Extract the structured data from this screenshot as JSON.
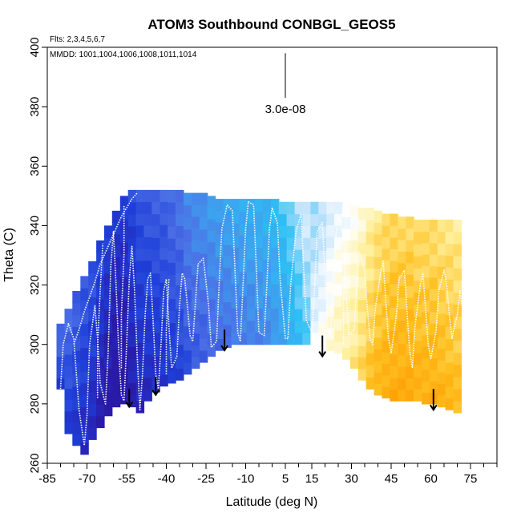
{
  "chart_data": {
    "type": "heatmap",
    "title": "ATOM3 Southbound CONBGL_GEOS5",
    "flights_note": "Flts: 2,3,4,5,6,7",
    "dates_note": "MMDD: 1001,1004,1006,1008,1011,1014",
    "xlabel": "Latitude (deg N)",
    "ylabel": "Theta (C)",
    "xlim": [
      -85,
      85
    ],
    "ylim": [
      260,
      400
    ],
    "x_ticks": [
      -85,
      -70,
      -55,
      -40,
      -25,
      -10,
      5,
      15,
      30,
      45,
      60,
      75
    ],
    "y_ticks": [
      260,
      280,
      300,
      320,
      340,
      360,
      380,
      400
    ],
    "scale_label": "3.0e-08",
    "scale_bar_x": 5,
    "scale_bar_y": [
      383,
      398
    ],
    "colormap": [
      "#2a1aa8",
      "#1e3fd8",
      "#4b6ee6",
      "#3ea0ee",
      "#2cc0f4",
      "#bfe2fb",
      "#ffffff",
      "#ffef9a",
      "#ffc020",
      "#ff9a00",
      "#e03000"
    ],
    "field": [
      {
        "lat": -80,
        "tmin": 285,
        "tmax": 307,
        "v": 0.15
      },
      {
        "lat": -77,
        "tmin": 270,
        "tmax": 312,
        "v": 0.14
      },
      {
        "lat": -74,
        "tmin": 266,
        "tmax": 318,
        "v": 0.12
      },
      {
        "lat": -71,
        "tmin": 263,
        "tmax": 323,
        "v": 0.1
      },
      {
        "lat": -68,
        "tmin": 268,
        "tmax": 328,
        "v": 0.09
      },
      {
        "lat": -65,
        "tmin": 272,
        "tmax": 335,
        "v": 0.06
      },
      {
        "lat": -62,
        "tmin": 276,
        "tmax": 340,
        "v": 0.04
      },
      {
        "lat": -59,
        "tmin": 279,
        "tmax": 345,
        "v": 0.02
      },
      {
        "lat": -56,
        "tmin": 280,
        "tmax": 350,
        "v": 0.03
      },
      {
        "lat": -53,
        "tmin": 279,
        "tmax": 352,
        "v": 0.06
      },
      {
        "lat": -50,
        "tmin": 277,
        "tmax": 352,
        "v": 0.09
      },
      {
        "lat": -47,
        "tmin": 281,
        "tmax": 352,
        "v": 0.1
      },
      {
        "lat": -44,
        "tmin": 284,
        "tmax": 352,
        "v": 0.11
      },
      {
        "lat": -41,
        "tmin": 286,
        "tmax": 352,
        "v": 0.12
      },
      {
        "lat": -38,
        "tmin": 287,
        "tmax": 352,
        "v": 0.14
      },
      {
        "lat": -35,
        "tmin": 288,
        "tmax": 352,
        "v": 0.16
      },
      {
        "lat": -32,
        "tmin": 290,
        "tmax": 351,
        "v": 0.19
      },
      {
        "lat": -29,
        "tmin": 292,
        "tmax": 351,
        "v": 0.21
      },
      {
        "lat": -26,
        "tmin": 294,
        "tmax": 351,
        "v": 0.22
      },
      {
        "lat": -23,
        "tmin": 296,
        "tmax": 350,
        "v": 0.24
      },
      {
        "lat": -20,
        "tmin": 298,
        "tmax": 349,
        "v": 0.25
      },
      {
        "lat": -17,
        "tmin": 299,
        "tmax": 349,
        "v": 0.26
      },
      {
        "lat": -14,
        "tmin": 300,
        "tmax": 349,
        "v": 0.27
      },
      {
        "lat": -11,
        "tmin": 300,
        "tmax": 349,
        "v": 0.28
      },
      {
        "lat": -8,
        "tmin": 300,
        "tmax": 349,
        "v": 0.29
      },
      {
        "lat": -5,
        "tmin": 300,
        "tmax": 349,
        "v": 0.3
      },
      {
        "lat": -2,
        "tmin": 300,
        "tmax": 349,
        "v": 0.31
      },
      {
        "lat": 1,
        "tmin": 300,
        "tmax": 349,
        "v": 0.33
      },
      {
        "lat": 4,
        "tmin": 300,
        "tmax": 348,
        "v": 0.36
      },
      {
        "lat": 7,
        "tmin": 300,
        "tmax": 348,
        "v": 0.4
      },
      {
        "lat": 10,
        "tmin": 300,
        "tmax": 348,
        "v": 0.44
      },
      {
        "lat": 13,
        "tmin": 300,
        "tmax": 348,
        "v": 0.48
      },
      {
        "lat": 16,
        "tmin": 300,
        "tmax": 348,
        "v": 0.52
      },
      {
        "lat": 19,
        "tmin": 299,
        "tmax": 348,
        "v": 0.55
      },
      {
        "lat": 22,
        "tmin": 298,
        "tmax": 348,
        "v": 0.59
      },
      {
        "lat": 25,
        "tmin": 297,
        "tmax": 348,
        "v": 0.62
      },
      {
        "lat": 28,
        "tmin": 295,
        "tmax": 347,
        "v": 0.64
      },
      {
        "lat": 31,
        "tmin": 292,
        "tmax": 347,
        "v": 0.66
      },
      {
        "lat": 34,
        "tmin": 288,
        "tmax": 346,
        "v": 0.7
      },
      {
        "lat": 37,
        "tmin": 285,
        "tmax": 346,
        "v": 0.74
      },
      {
        "lat": 40,
        "tmin": 283,
        "tmax": 345,
        "v": 0.77
      },
      {
        "lat": 43,
        "tmin": 282,
        "tmax": 344,
        "v": 0.79
      },
      {
        "lat": 46,
        "tmin": 281,
        "tmax": 344,
        "v": 0.8
      },
      {
        "lat": 49,
        "tmin": 281,
        "tmax": 343,
        "v": 0.8
      },
      {
        "lat": 52,
        "tmin": 281,
        "tmax": 343,
        "v": 0.8
      },
      {
        "lat": 55,
        "tmin": 281,
        "tmax": 342,
        "v": 0.79
      },
      {
        "lat": 58,
        "tmin": 280,
        "tmax": 342,
        "v": 0.79
      },
      {
        "lat": 61,
        "tmin": 280,
        "tmax": 342,
        "v": 0.79
      },
      {
        "lat": 64,
        "tmin": 279,
        "tmax": 342,
        "v": 0.78
      },
      {
        "lat": 67,
        "tmin": 278,
        "tmax": 342,
        "v": 0.77
      },
      {
        "lat": 70,
        "tmin": 277,
        "tmax": 342,
        "v": 0.76
      }
    ],
    "flight_tracks": [
      [
        [
          -80,
          285
        ],
        [
          -79,
          300
        ],
        [
          -77,
          307
        ],
        [
          -75,
          302
        ],
        [
          -74,
          290
        ],
        [
          -73,
          278
        ],
        [
          -71,
          266
        ],
        [
          -70,
          276
        ],
        [
          -69,
          300
        ],
        [
          -67,
          313
        ],
        [
          -66,
          302
        ],
        [
          -65,
          287
        ],
        [
          -63,
          280
        ],
        [
          -62,
          297
        ],
        [
          -61,
          326
        ],
        [
          -60,
          338
        ],
        [
          -59,
          320
        ],
        [
          -58,
          298
        ],
        [
          -57,
          283
        ],
        [
          -56,
          281
        ],
        [
          -55,
          300
        ],
        [
          -54,
          322
        ],
        [
          -53,
          333
        ],
        [
          -52,
          318
        ],
        [
          -51,
          296
        ],
        [
          -50,
          278
        ],
        [
          -49,
          290
        ],
        [
          -48,
          310
        ],
        [
          -47,
          322
        ],
        [
          -46,
          324
        ],
        [
          -45,
          308
        ],
        [
          -44,
          290
        ],
        [
          -43,
          285
        ],
        [
          -42,
          300
        ],
        [
          -41,
          318
        ],
        [
          -40,
          322
        ],
        [
          -39,
          306
        ],
        [
          -38,
          292
        ],
        [
          -36,
          296
        ],
        [
          -35,
          313
        ],
        [
          -34,
          324
        ],
        [
          -33,
          322
        ],
        [
          -31,
          303
        ],
        [
          -30,
          301
        ],
        [
          -29,
          314
        ],
        [
          -28,
          327
        ],
        [
          -26,
          329
        ],
        [
          -24,
          313
        ],
        [
          -23,
          299
        ],
        [
          -21,
          301
        ],
        [
          -20,
          321
        ],
        [
          -19,
          339
        ],
        [
          -17,
          347
        ],
        [
          -15,
          345
        ],
        [
          -14,
          324
        ],
        [
          -13,
          304
        ],
        [
          -12,
          301
        ],
        [
          -11,
          320
        ],
        [
          -10,
          339
        ],
        [
          -9,
          348
        ],
        [
          -7,
          347
        ],
        [
          -6,
          326
        ],
        [
          -5,
          304
        ],
        [
          -3,
          303
        ],
        [
          -2,
          320
        ],
        [
          -1,
          339
        ],
        [
          0,
          346
        ],
        [
          2,
          341
        ],
        [
          3,
          322
        ],
        [
          5,
          302
        ],
        [
          6,
          302
        ],
        [
          7,
          320
        ],
        [
          9,
          338
        ],
        [
          11,
          344
        ],
        [
          12,
          324
        ],
        [
          13,
          308
        ],
        [
          15,
          304
        ],
        [
          16,
          318
        ],
        [
          17,
          338
        ],
        [
          19,
          341
        ],
        [
          20,
          323
        ],
        [
          21,
          306
        ],
        [
          22,
          303
        ],
        [
          23,
          318
        ],
        [
          24,
          336
        ],
        [
          25,
          343
        ],
        [
          27,
          336
        ],
        [
          28,
          317
        ],
        [
          29,
          303
        ],
        [
          31,
          305
        ],
        [
          32,
          320
        ],
        [
          33,
          331
        ],
        [
          35,
          325
        ],
        [
          36,
          312
        ],
        [
          37,
          302
        ],
        [
          38,
          300
        ],
        [
          39,
          312
        ],
        [
          41,
          324
        ],
        [
          42,
          328
        ],
        [
          43,
          314
        ],
        [
          44,
          302
        ],
        [
          45,
          297
        ],
        [
          47,
          310
        ],
        [
          48,
          322
        ],
        [
          50,
          325
        ],
        [
          51,
          311
        ],
        [
          52,
          298
        ],
        [
          53,
          292
        ],
        [
          54,
          306
        ],
        [
          56,
          320
        ],
        [
          57,
          324
        ],
        [
          58,
          312
        ],
        [
          59,
          300
        ],
        [
          60,
          295
        ],
        [
          62,
          305
        ],
        [
          63,
          318
        ],
        [
          65,
          325
        ],
        [
          66,
          320
        ],
        [
          67,
          310
        ],
        [
          68,
          302
        ],
        [
          70,
          310
        ],
        [
          71,
          318
        ],
        [
          72,
          312
        ]
      ],
      [
        [
          -75,
          300
        ],
        [
          -73,
          305
        ],
        [
          -71,
          311
        ],
        [
          -69,
          316
        ],
        [
          -67,
          321
        ],
        [
          -65,
          327
        ],
        [
          -63,
          331
        ],
        [
          -61,
          335
        ],
        [
          -59,
          339
        ],
        [
          -57,
          343
        ],
        [
          -55,
          346
        ],
        [
          -53,
          349
        ],
        [
          -51,
          351
        ]
      ],
      [
        [
          -66,
          282
        ],
        [
          -66,
          300
        ],
        [
          -65,
          318
        ],
        [
          -64,
          334
        ]
      ],
      [
        [
          -57,
          292
        ],
        [
          -57,
          310
        ],
        [
          -56,
          330
        ],
        [
          -56,
          347
        ]
      ],
      [
        [
          -40,
          290
        ],
        [
          -40,
          305
        ],
        [
          -39,
          322
        ]
      ],
      [
        [
          27,
          300
        ],
        [
          27,
          316
        ],
        [
          28,
          332
        ],
        [
          28,
          346
        ]
      ]
    ],
    "arrows": [
      {
        "lat": -54,
        "theta_top": 285,
        "theta_tip": 279
      },
      {
        "lat": -44,
        "theta_top": 289,
        "theta_tip": 283
      },
      {
        "lat": -18,
        "theta_top": 305,
        "theta_tip": 298
      },
      {
        "lat": 19,
        "theta_top": 303,
        "theta_tip": 296
      },
      {
        "lat": 61,
        "theta_top": 285,
        "theta_tip": 278
      }
    ]
  }
}
